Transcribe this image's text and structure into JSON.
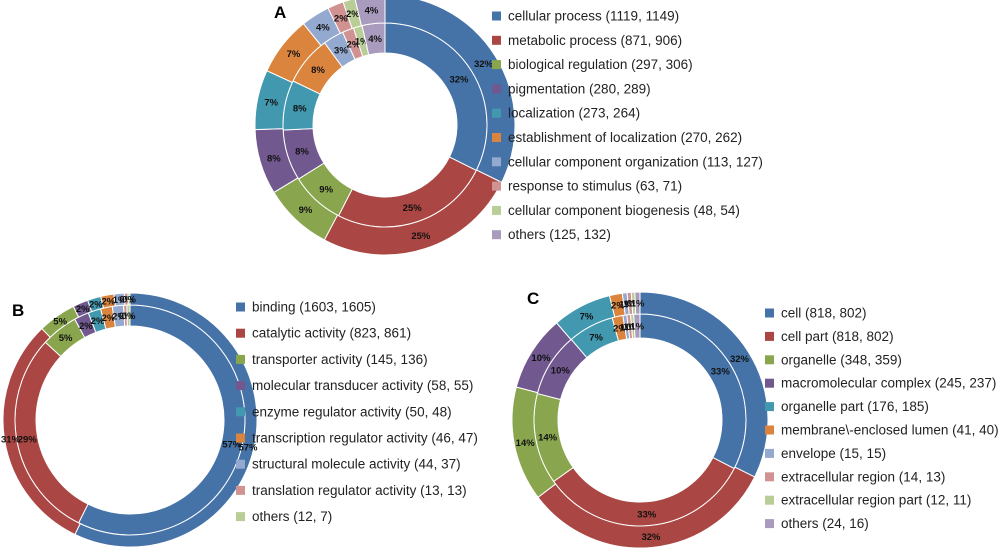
{
  "chart_data": [
    {
      "type": "pie",
      "panel": "A",
      "subtype": "double-donut",
      "legend_position": "right",
      "categories": [
        "cellular process (1119, 1149)",
        "metabolic process (871, 906)",
        "biological regulation (297, 306)",
        "pigmentation (280, 289)",
        "localization (273, 264)",
        "establishment of localization (270, 262)",
        "cellular component organization (113, 127)",
        "response to stimulus (63, 71)",
        "cellular component biogenesis (48, 54)",
        "others (125, 132)"
      ],
      "series": [
        {
          "name": "inner",
          "values": [
            1119,
            871,
            297,
            280,
            273,
            270,
            113,
            63,
            48,
            125
          ],
          "labels": [
            "32%",
            "25%",
            "9%",
            "8%",
            "8%",
            "8%",
            "3%",
            "2%",
            "1%",
            "4%"
          ]
        },
        {
          "name": "outer",
          "values": [
            1149,
            906,
            306,
            289,
            264,
            262,
            127,
            71,
            54,
            132
          ],
          "labels": [
            "32%",
            "25%",
            "9%",
            "8%",
            "7%",
            "7%",
            "4%",
            "2%",
            "2%",
            "4%"
          ]
        }
      ]
    },
    {
      "type": "pie",
      "panel": "B",
      "subtype": "double-donut",
      "legend_position": "right",
      "categories": [
        "binding (1603, 1605)",
        "catalytic activity (823, 861)",
        "transporter activity (145, 136)",
        "molecular transducer activity (58, 55)",
        "enzyme regulator activity (50, 48)",
        "transcription regulator activity (46, 47)",
        "structural molecule activity (44, 37)",
        "translation regulator activity (13, 13)",
        "others (12, 7)"
      ],
      "series": [
        {
          "name": "inner",
          "values": [
            1603,
            823,
            145,
            58,
            50,
            46,
            44,
            13,
            12
          ],
          "labels": [
            "57%",
            "29%",
            "5%",
            "2%",
            "2%",
            "2%",
            "2%",
            "0%",
            "0%"
          ]
        },
        {
          "name": "outer",
          "values": [
            1605,
            861,
            136,
            55,
            48,
            47,
            37,
            13,
            7
          ],
          "labels": [
            "57%",
            "31%",
            "5%",
            "2%",
            "2%",
            "2%",
            "1%",
            "0%",
            "0%"
          ]
        }
      ]
    },
    {
      "type": "pie",
      "panel": "C",
      "subtype": "double-donut",
      "legend_position": "right",
      "categories": [
        "cell (818, 802)",
        "cell part (818, 802)",
        "organelle (348, 359)",
        "macromolecular complex (245, 237)",
        "organelle part (176, 185)",
        "membrane\\-enclosed lumen (41, 40)",
        "envelope (15, 15)",
        "extracellular region (14, 13)",
        "extracellular region part (12, 11)",
        "others (24, 16)"
      ],
      "series": [
        {
          "name": "inner",
          "values": [
            818,
            818,
            348,
            245,
            176,
            41,
            15,
            14,
            12,
            24
          ],
          "labels": [
            "33%",
            "33%",
            "14%",
            "10%",
            "7%",
            "2%",
            "1%",
            "1%",
            "0%",
            "1%"
          ]
        },
        {
          "name": "outer",
          "values": [
            802,
            802,
            359,
            237,
            185,
            40,
            15,
            13,
            11,
            16
          ],
          "labels": [
            "32%",
            "32%",
            "14%",
            "10%",
            "7%",
            "2%",
            "1%",
            "1%",
            "0%",
            "1%"
          ]
        }
      ]
    }
  ],
  "colors": [
    "#4572A7",
    "#AA4643",
    "#89A54E",
    "#71588F",
    "#4198AF",
    "#DB843D",
    "#93A9CF",
    "#D19392",
    "#B9CD96",
    "#A99BBD"
  ]
}
